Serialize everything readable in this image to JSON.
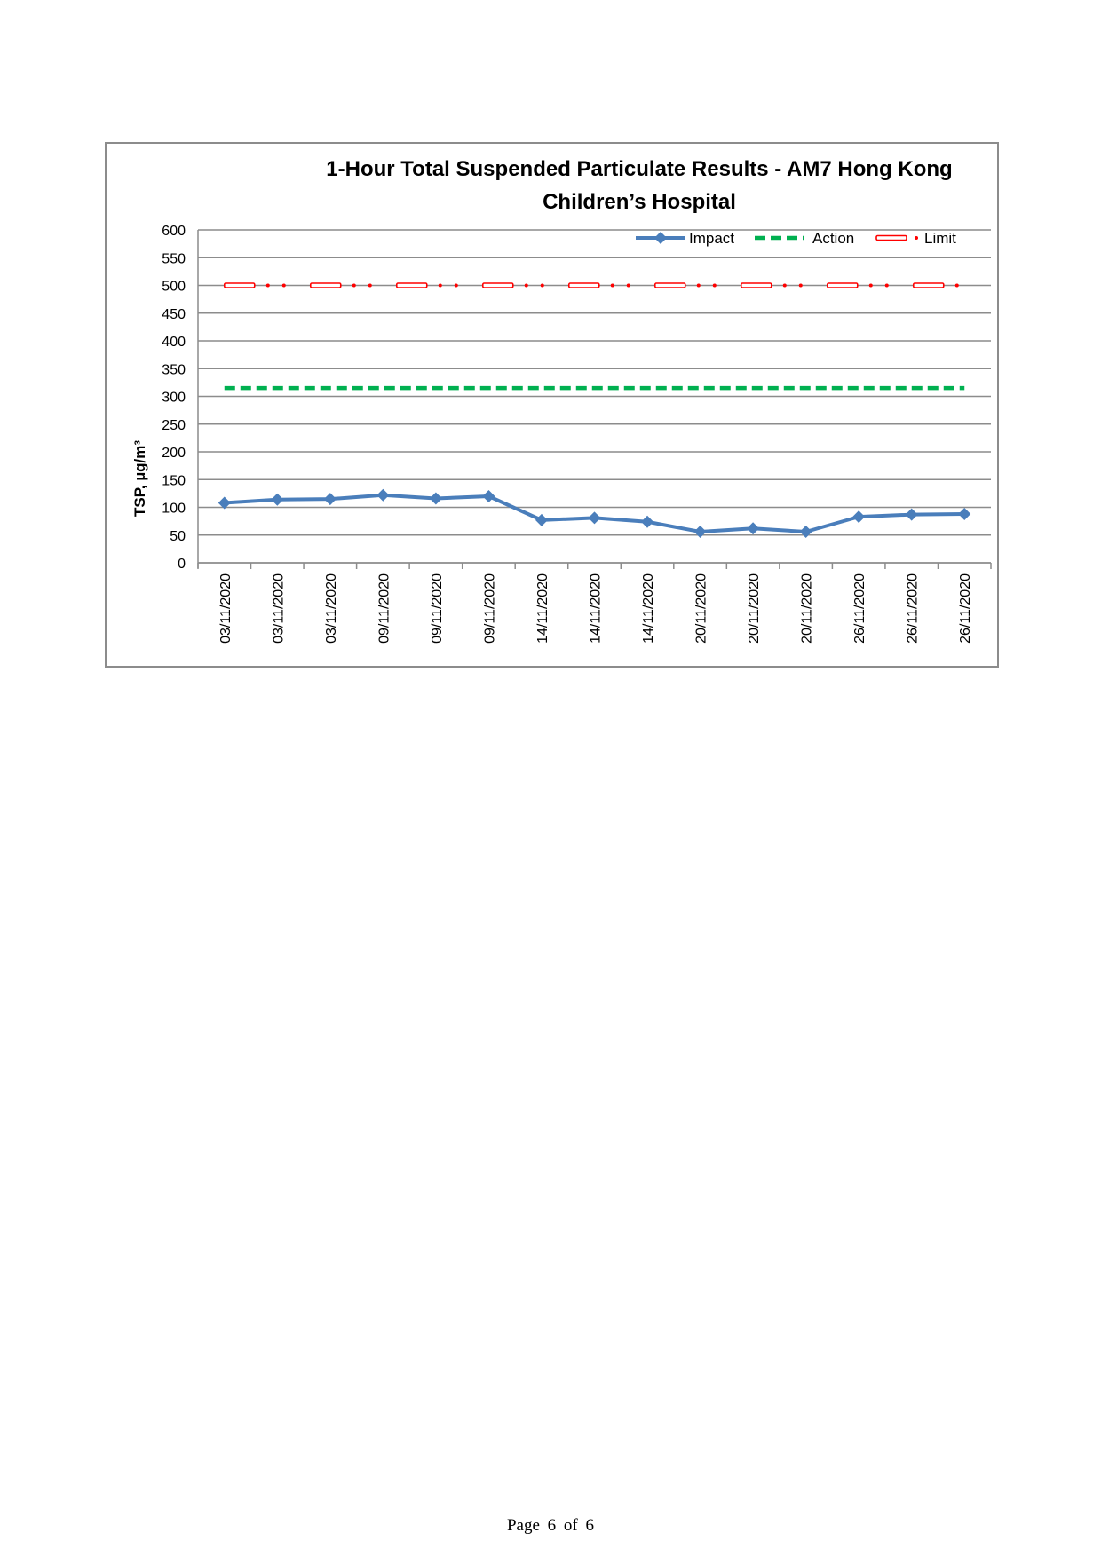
{
  "chart_data": {
    "type": "line",
    "title": "1-Hour Total Suspended Particulate Results - AM7 Hong Kong Children’s Hospital",
    "xlabel": "",
    "ylabel": "TSP, µg/m³",
    "ylim": [
      0,
      600
    ],
    "yticks": [
      "0",
      "50",
      "100",
      "150",
      "200",
      "250",
      "300",
      "350",
      "400",
      "450",
      "500",
      "550",
      "600"
    ],
    "grid": true,
    "legend_position": "top-right",
    "categories": [
      "03/11/2020",
      "03/11/2020",
      "03/11/2020",
      "09/11/2020",
      "09/11/2020",
      "09/11/2020",
      "14/11/2020",
      "14/11/2020",
      "14/11/2020",
      "20/11/2020",
      "20/11/2020",
      "20/11/2020",
      "26/11/2020",
      "26/11/2020",
      "26/11/2020"
    ],
    "series": [
      {
        "name": "Impact",
        "color": "#4a7ebb",
        "style": "solid-diamond",
        "values": [
          108,
          114,
          115,
          122,
          116,
          120,
          77,
          81,
          74,
          56,
          62,
          56,
          83,
          87,
          88
        ]
      },
      {
        "name": "Action",
        "color": "#00b050",
        "style": "dashed",
        "values": [
          315,
          315,
          315,
          315,
          315,
          315,
          315,
          315,
          315,
          315,
          315,
          315,
          315,
          315,
          315
        ]
      },
      {
        "name": "Limit",
        "color": "#ff0000",
        "style": "dash-dot-double",
        "values": [
          500,
          500,
          500,
          500,
          500,
          500,
          500,
          500,
          500,
          500,
          500,
          500,
          500,
          500,
          500
        ]
      }
    ]
  },
  "footer": {
    "page_label": "Page 6 of 6"
  }
}
